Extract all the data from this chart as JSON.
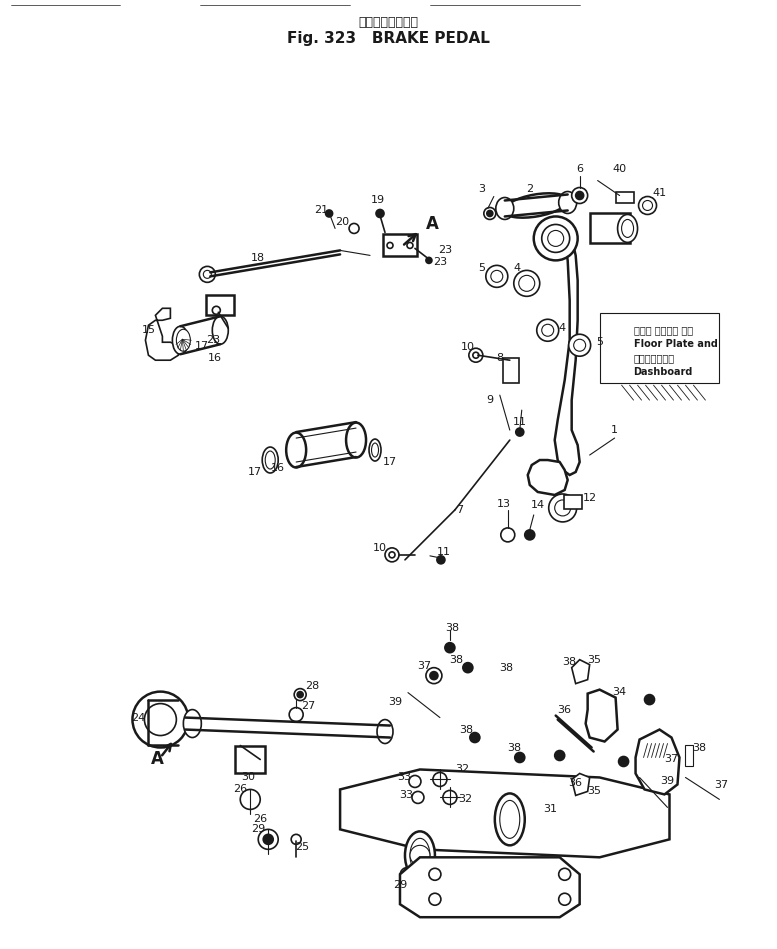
{
  "title_jp": "ブレーキ　ペダル",
  "title_en": "Fig. 323   BRAKE PEDAL",
  "bg_color": "#ffffff",
  "ink_color": "#1a1a1a",
  "fig_width": 7.77,
  "fig_height": 9.49,
  "note_lines": [
    "フロア プレート 及び",
    "Floor Plate and",
    "ダッシュボード",
    "Dashboard"
  ]
}
